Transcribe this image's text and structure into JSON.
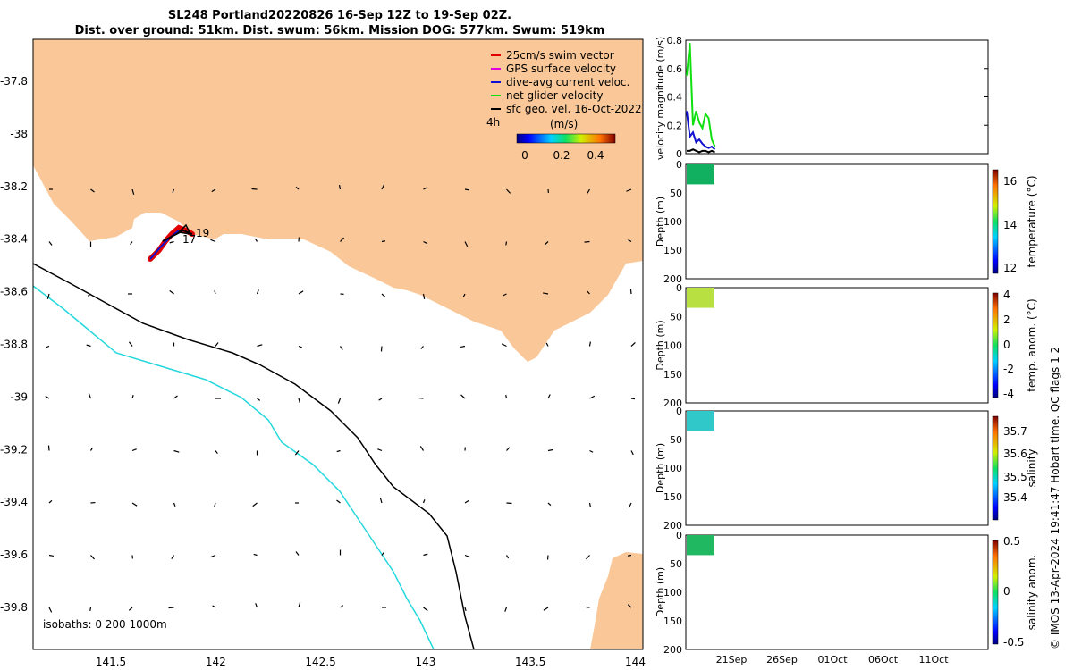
{
  "header": {
    "line1": "SL248 Portland20220826 16-Sep 12Z to 19-Sep 02Z.",
    "line2": "Dist. over ground: 51km. Dist. swum: 56km. Mission DOG: 577km. Swum: 519km"
  },
  "map": {
    "legend": [
      {
        "label": "25cm/s swim vector",
        "color": "#e00000"
      },
      {
        "label": "GPS surface velocity",
        "color": "#e000e0"
      },
      {
        "label": "dive-avg current veloc.",
        "color": "#1010d0"
      },
      {
        "label": "net glider velocity",
        "color": "#10e010"
      },
      {
        "label": "sfc geo. vel. 16-Oct-2022",
        "color": "#000000"
      }
    ],
    "time_step": "4h",
    "colorbar": {
      "unit": "(m/s)",
      "ticks": [
        "0",
        "0.2",
        "0.4"
      ]
    },
    "lon_ticks": [
      "141.5",
      "142",
      "142.5",
      "143",
      "143.5",
      "144"
    ],
    "lat_ticks": [
      "-37.8",
      "-38",
      "-38.2",
      "-38.4",
      "-38.6",
      "-38.8",
      "-39",
      "-39.2",
      "-39.4",
      "-39.6",
      "-39.8"
    ],
    "isobaths_text": "isobaths: 0   200  1000m",
    "day_labels": [
      "17",
      "19"
    ],
    "colors": {
      "land": "#fac898",
      "isobath_200": "#25d8dd",
      "isobath_1000": "#000000"
    }
  },
  "chart_data": [
    {
      "type": "line",
      "title": "",
      "ylabel": "velocity magnitude (m/s)",
      "ylim": [
        0,
        0.8
      ],
      "y_ticks": [
        "0",
        "0.2",
        "0.4",
        "0.6",
        "0.8"
      ],
      "x_tick_labels": [
        "21Sep",
        "26Sep",
        "01Oct",
        "06Oct",
        "11Oct"
      ],
      "series": [
        {
          "name": "net glider velocity",
          "color": "#10e010",
          "values": [
            0.55,
            0.78,
            0.2,
            0.3,
            0.22,
            0.18,
            0.28,
            0.25,
            0.1,
            0.05
          ]
        },
        {
          "name": "dive-avg current veloc.",
          "color": "#1010d0",
          "values": [
            0.3,
            0.12,
            0.15,
            0.08,
            0.1,
            0.07,
            0.05,
            0.04,
            0.05,
            0.03
          ]
        },
        {
          "name": "sfc geo. vel.",
          "color": "#000000",
          "values": [
            0.02,
            0.02,
            0.03,
            0.02,
            0.01,
            0.02,
            0.02,
            0.01,
            0.02,
            0.01
          ]
        }
      ]
    },
    {
      "type": "heatmap",
      "ylabel": "Depth (m)",
      "variable": "temperature (°C)",
      "y_ticks": [
        "0",
        "50",
        "100",
        "150",
        "200"
      ],
      "colorbar_ticks": [
        "12",
        "14",
        "16"
      ],
      "depth_range": [
        0,
        35
      ],
      "color": "#10b060"
    },
    {
      "type": "heatmap",
      "ylabel": "Depth (m)",
      "variable": "temp. anom. (°C)",
      "y_ticks": [
        "0",
        "50",
        "100",
        "150",
        "200"
      ],
      "colorbar_ticks": [
        "-4",
        "-2",
        "0",
        "2",
        "4"
      ],
      "depth_range": [
        0,
        35
      ],
      "color": "#b8e040"
    },
    {
      "type": "heatmap",
      "ylabel": "Depth (m)",
      "variable": "salinity",
      "y_ticks": [
        "0",
        "50",
        "100",
        "150",
        "200"
      ],
      "colorbar_ticks": [
        "35.4",
        "35.5",
        "35.6",
        "35.7"
      ],
      "depth_range": [
        0,
        35
      ],
      "color": "#30c8c8"
    },
    {
      "type": "heatmap",
      "ylabel": "Depth (m)",
      "variable": "salinity anom.",
      "y_ticks": [
        "0",
        "50",
        "100",
        "150",
        "200"
      ],
      "colorbar_ticks": [
        "-0.5",
        "0",
        "0.5"
      ],
      "depth_range": [
        0,
        35
      ],
      "color": "#20b860"
    }
  ],
  "footer": {
    "credit": "© IMOS 13-Apr-2024 19:41:47 Hobart time. QC flags 1  2"
  }
}
